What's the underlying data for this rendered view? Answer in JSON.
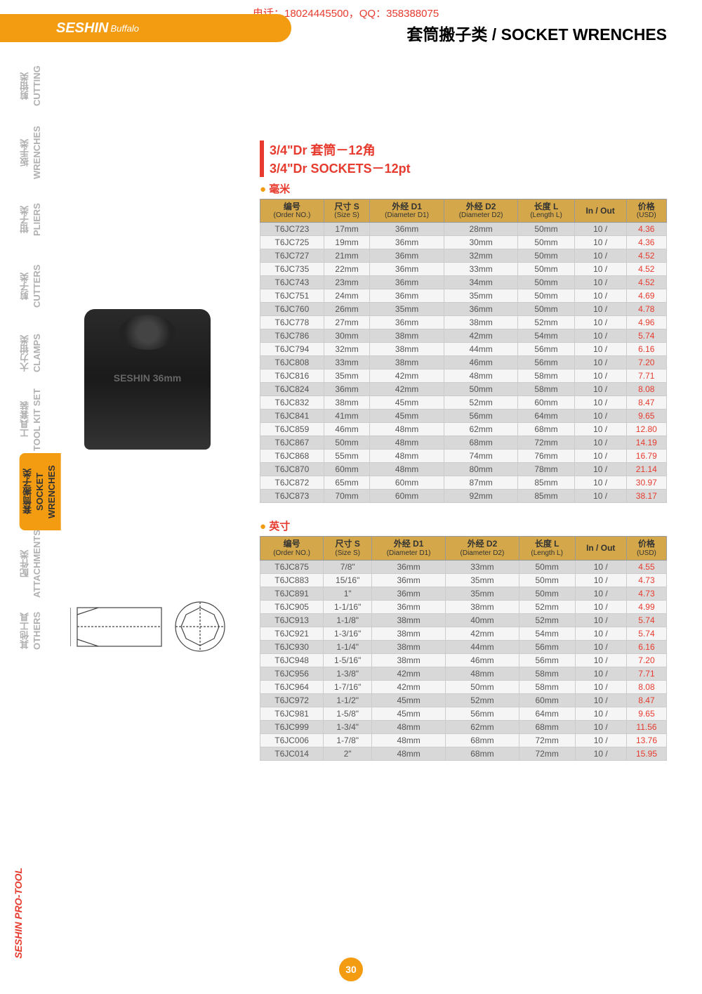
{
  "contact": "电话：18024445500，QQ：358388075",
  "brand": "SESHIN",
  "brand_sub": "Buffalo",
  "page_title_cn": "套筒搬子类",
  "page_title_en": "SOCKET WRENCHES",
  "side_tabs": [
    {
      "cn": "剪钳类",
      "en": "CUTTING"
    },
    {
      "cn": "扳手类",
      "en": "WRENCHES"
    },
    {
      "cn": "钳子类",
      "en": "PLIERS"
    },
    {
      "cn": "剪子类",
      "en": "CUTTERS"
    },
    {
      "cn": "大力钳类",
      "en": "CLAMPS"
    },
    {
      "cn": "工具套装",
      "en": "TOOL KIT SET"
    },
    {
      "cn": "套筒搬子类",
      "en": "SOCKET WRENCHES"
    },
    {
      "cn": "配件类",
      "en": "ATTACHMENTS"
    },
    {
      "cn": "其他工具",
      "en": "OTHERS"
    }
  ],
  "active_tab_index": 6,
  "section_title_cn": "3/4\"Dr 套筒－12角",
  "section_title_en": "3/4\"Dr SOCKETS－12pt",
  "unit_mm": "毫米",
  "unit_inch": "英寸",
  "columns": [
    {
      "cn": "编号",
      "en": "(Order NO.)"
    },
    {
      "cn": "尺寸 S",
      "en": "(Size S)"
    },
    {
      "cn": "外经 D1",
      "en": "(Diameter D1)"
    },
    {
      "cn": "外经 D2",
      "en": "(Diameter D2)"
    },
    {
      "cn": "长度 L",
      "en": "(Length L)"
    },
    {
      "cn": "In / Out",
      "en": ""
    },
    {
      "cn": "价格",
      "en": "(USD)"
    }
  ],
  "rows_mm": [
    [
      "T6JC723",
      "17mm",
      "36mm",
      "28mm",
      "50mm",
      "10 /",
      "4.36"
    ],
    [
      "T6JC725",
      "19mm",
      "36mm",
      "30mm",
      "50mm",
      "10 /",
      "4.36"
    ],
    [
      "T6JC727",
      "21mm",
      "36mm",
      "32mm",
      "50mm",
      "10 /",
      "4.52"
    ],
    [
      "T6JC735",
      "22mm",
      "36mm",
      "33mm",
      "50mm",
      "10 /",
      "4.52"
    ],
    [
      "T6JC743",
      "23mm",
      "36mm",
      "34mm",
      "50mm",
      "10 /",
      "4.52"
    ],
    [
      "T6JC751",
      "24mm",
      "36mm",
      "35mm",
      "50mm",
      "10 /",
      "4.69"
    ],
    [
      "T6JC760",
      "26mm",
      "35mm",
      "36mm",
      "50mm",
      "10 /",
      "4.78"
    ],
    [
      "T6JC778",
      "27mm",
      "36mm",
      "38mm",
      "52mm",
      "10 /",
      "4.96"
    ],
    [
      "T6JC786",
      "30mm",
      "38mm",
      "42mm",
      "54mm",
      "10 /",
      "5.74"
    ],
    [
      "T6JC794",
      "32mm",
      "38mm",
      "44mm",
      "56mm",
      "10 /",
      "6.16"
    ],
    [
      "T6JC808",
      "33mm",
      "38mm",
      "46mm",
      "56mm",
      "10 /",
      "7.20"
    ],
    [
      "T6JC816",
      "35mm",
      "42mm",
      "48mm",
      "58mm",
      "10 /",
      "7.71"
    ],
    [
      "T6JC824",
      "36mm",
      "42mm",
      "50mm",
      "58mm",
      "10 /",
      "8.08"
    ],
    [
      "T6JC832",
      "38mm",
      "45mm",
      "52mm",
      "60mm",
      "10 /",
      "8.47"
    ],
    [
      "T6JC841",
      "41mm",
      "45mm",
      "56mm",
      "64mm",
      "10 /",
      "9.65"
    ],
    [
      "T6JC859",
      "46mm",
      "48mm",
      "62mm",
      "68mm",
      "10 /",
      "12.80"
    ],
    [
      "T6JC867",
      "50mm",
      "48mm",
      "68mm",
      "72mm",
      "10 /",
      "14.19"
    ],
    [
      "T6JC868",
      "55mm",
      "48mm",
      "74mm",
      "76mm",
      "10 /",
      "16.79"
    ],
    [
      "T6JC870",
      "60mm",
      "48mm",
      "80mm",
      "78mm",
      "10 /",
      "21.14"
    ],
    [
      "T6JC872",
      "65mm",
      "60mm",
      "87mm",
      "85mm",
      "10 /",
      "30.97"
    ],
    [
      "T6JC873",
      "70mm",
      "60mm",
      "92mm",
      "85mm",
      "10 /",
      "38.17"
    ]
  ],
  "rows_inch": [
    [
      "T6JC875",
      "7/8\"",
      "36mm",
      "33mm",
      "50mm",
      "10 /",
      "4.55"
    ],
    [
      "T6JC883",
      "15/16\"",
      "36mm",
      "35mm",
      "50mm",
      "10 /",
      "4.73"
    ],
    [
      "T6JC891",
      "1\"",
      "36mm",
      "35mm",
      "50mm",
      "10 /",
      "4.73"
    ],
    [
      "T6JC905",
      "1-1/16\"",
      "36mm",
      "38mm",
      "52mm",
      "10 /",
      "4.99"
    ],
    [
      "T6JC913",
      "1-1/8\"",
      "38mm",
      "40mm",
      "52mm",
      "10 /",
      "5.74"
    ],
    [
      "T6JC921",
      "1-3/16\"",
      "38mm",
      "42mm",
      "54mm",
      "10 /",
      "5.74"
    ],
    [
      "T6JC930",
      "1-1/4\"",
      "38mm",
      "44mm",
      "56mm",
      "10 /",
      "6.16"
    ],
    [
      "T6JC948",
      "1-5/16\"",
      "38mm",
      "46mm",
      "56mm",
      "10 /",
      "7.20"
    ],
    [
      "T6JC956",
      "1-3/8\"",
      "42mm",
      "48mm",
      "58mm",
      "10 /",
      "7.71"
    ],
    [
      "T6JC964",
      "1-7/16\"",
      "42mm",
      "50mm",
      "58mm",
      "10 /",
      "8.08"
    ],
    [
      "T6JC972",
      "1-1/2\"",
      "45mm",
      "52mm",
      "60mm",
      "10 /",
      "8.47"
    ],
    [
      "T6JC981",
      "1-5/8\"",
      "45mm",
      "56mm",
      "64mm",
      "10 /",
      "9.65"
    ],
    [
      "T6JC999",
      "1-3/4\"",
      "48mm",
      "62mm",
      "68mm",
      "10 /",
      "11.56"
    ],
    [
      "T6JC006",
      "1-7/8\"",
      "48mm",
      "68mm",
      "72mm",
      "10 /",
      "13.76"
    ],
    [
      "T6JC014",
      "2\"",
      "48mm",
      "68mm",
      "72mm",
      "10 /",
      "15.95"
    ]
  ],
  "page_number": "30",
  "bottom_brand": "SESHIN PRO-TOOL",
  "colors": {
    "orange": "#f39c12",
    "red": "#e63b2e",
    "header_bg": "#d4a84a",
    "row_alt": "#d8d8d8"
  }
}
